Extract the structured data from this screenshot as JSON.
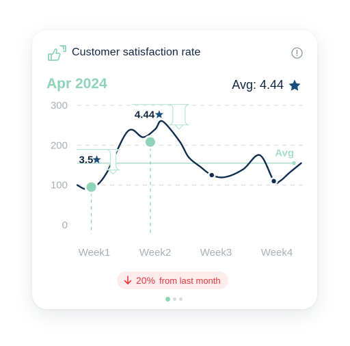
{
  "card": {
    "title": "Customer satisfaction rate",
    "header_icon": "thumbs-up-down-icon",
    "info_icon": "info-icon",
    "month": "Apr 2024",
    "avg_text": "Avg: 4.44",
    "avg_icon": "star-icon"
  },
  "colors": {
    "accent": "#8fd3b8",
    "navy": "#10253f",
    "line": "#0f2d4e",
    "negative": "#e2383f",
    "negative_bg": "#fdecec",
    "grid": "#dcdfe3",
    "tick": "#a8afb7"
  },
  "chart_data": {
    "type": "line",
    "categories": [
      "Week1",
      "Week2",
      "Week3",
      "Week4"
    ],
    "y_ticks": [
      0,
      100,
      200,
      300
    ],
    "ylim": [
      0,
      300
    ],
    "grid": true,
    "avg_line": {
      "label": "Avg",
      "value": 155
    },
    "series": [
      {
        "x": [
          0.72,
          0.85,
          1.0,
          1.2,
          1.55,
          1.8,
          2.0,
          2.12,
          2.4,
          2.55,
          2.75,
          2.93,
          3.15,
          3.45,
          3.72,
          3.95,
          4.05,
          4.2,
          4.4
        ],
        "y": [
          100,
          90,
          95,
          130,
          235,
          220,
          240,
          260,
          210,
          170,
          145,
          125,
          120,
          140,
          175,
          110,
          110,
          130,
          155
        ]
      }
    ],
    "markers": [
      {
        "x": 0.93,
        "y": 93
      },
      {
        "x": 2.93,
        "y": 125
      },
      {
        "x": 3.95,
        "y": 110
      }
    ],
    "highlights": [
      {
        "x": 0.95,
        "y": 95,
        "label": "3.5"
      },
      {
        "x": 1.92,
        "y": 208,
        "label": "4.44"
      }
    ]
  },
  "footer": {
    "change_pct": "20%",
    "change_text": "from last month",
    "change_icon": "arrow-down-icon",
    "page_dots": 3,
    "active_dot": 0
  }
}
